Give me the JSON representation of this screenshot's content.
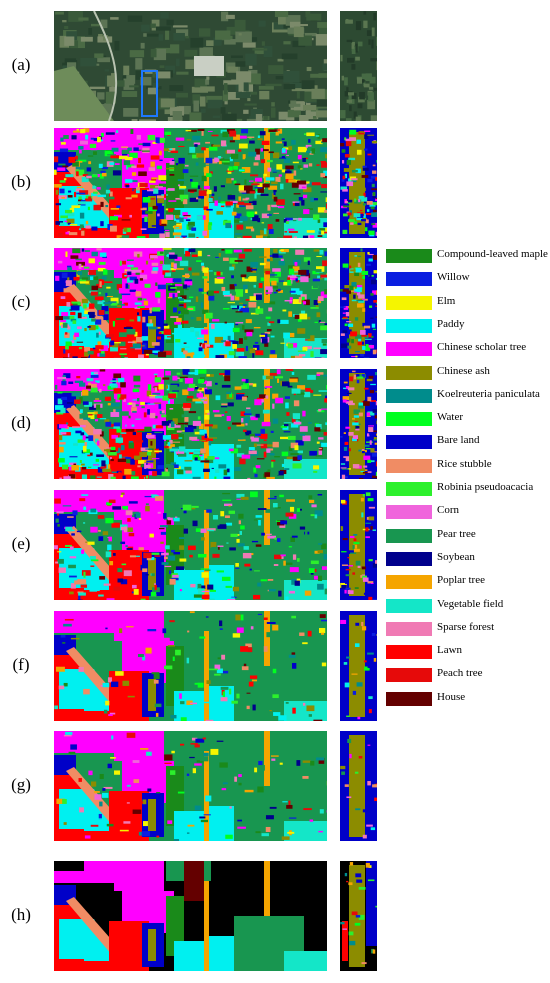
{
  "panels": [
    {
      "label": "(a)",
      "style": "rgb"
    },
    {
      "label": "(b)",
      "style": "noisy"
    },
    {
      "label": "(c)",
      "style": "noisy"
    },
    {
      "label": "(d)",
      "style": "noisy"
    },
    {
      "label": "(e)",
      "style": "medium"
    },
    {
      "label": "(f)",
      "style": "smooth"
    },
    {
      "label": "(g)",
      "style": "smooth"
    },
    {
      "label": "(h)",
      "style": "gt"
    }
  ],
  "legend": [
    {
      "label": "Compound-leaved maple",
      "color": "#1a8a1a"
    },
    {
      "label": "Willow",
      "color": "#0a1ee0"
    },
    {
      "label": "Elm",
      "color": "#f5f500"
    },
    {
      "label": "Paddy",
      "color": "#00f0f0"
    },
    {
      "label": "Chinese scholar tree",
      "color": "#ff00ff"
    },
    {
      "label": "Chinese ash",
      "color": "#8c8c00"
    },
    {
      "label": "Koelreuteria paniculata",
      "color": "#008c8c"
    },
    {
      "label": "Water",
      "color": "#00ff20"
    },
    {
      "label": "Bare land",
      "color": "#0000c8"
    },
    {
      "label": "Rice stubble",
      "color": "#f08c64"
    },
    {
      "label": "Robinia pseudoacacia",
      "color": "#2cf02c"
    },
    {
      "label": "Corn",
      "color": "#f064dc"
    },
    {
      "label": "Pear tree",
      "color": "#189650"
    },
    {
      "label": "Soybean",
      "color": "#00008c"
    },
    {
      "label": "Poplar tree",
      "color": "#f5a500"
    },
    {
      "label": "Vegetable field",
      "color": "#14e6c8"
    },
    {
      "label": "Sparse forest",
      "color": "#f07ab4"
    },
    {
      "label": "Lawn",
      "color": "#ff0000"
    },
    {
      "label": "Peach tree",
      "color": "#e60a0a"
    },
    {
      "label": "House",
      "color": "#640000"
    }
  ]
}
